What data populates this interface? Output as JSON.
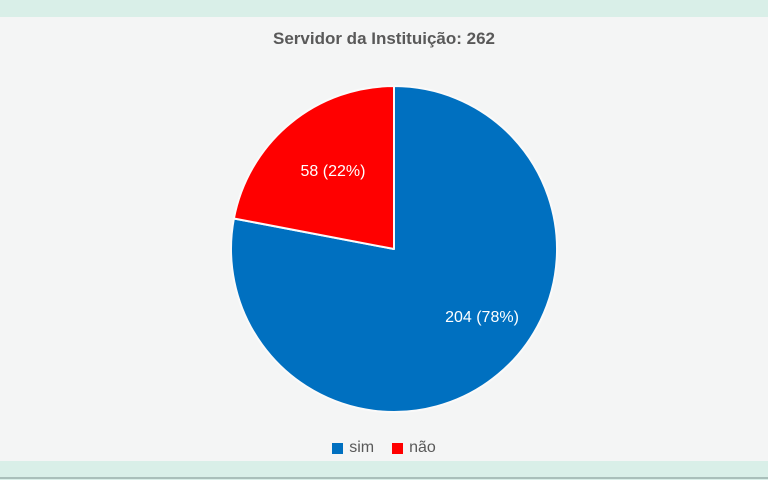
{
  "app": {
    "background_color": "#f4f5f5",
    "top_bar_color": "#d9efe8",
    "bottom_bar_color": "#d9efe8",
    "bottom_rule_color": "#a9bfba"
  },
  "chart_data": {
    "type": "pie",
    "title": "Servidor da Instituição: 262",
    "total": 262,
    "start_angle_deg": 0,
    "direction": "clockwise",
    "legend_position": "bottom",
    "title_color": "#595959",
    "legend_text_color": "#595959",
    "data_label_color": "#ffffff",
    "slices": [
      {
        "key": "sim",
        "label": "sim",
        "value": 204,
        "percent": 78,
        "color": "#0070c0",
        "data_label": "204 (78%)"
      },
      {
        "key": "nao",
        "label": "não",
        "value": 58,
        "percent": 22,
        "color": "#ff0000",
        "data_label": "58 (22%)"
      }
    ]
  }
}
